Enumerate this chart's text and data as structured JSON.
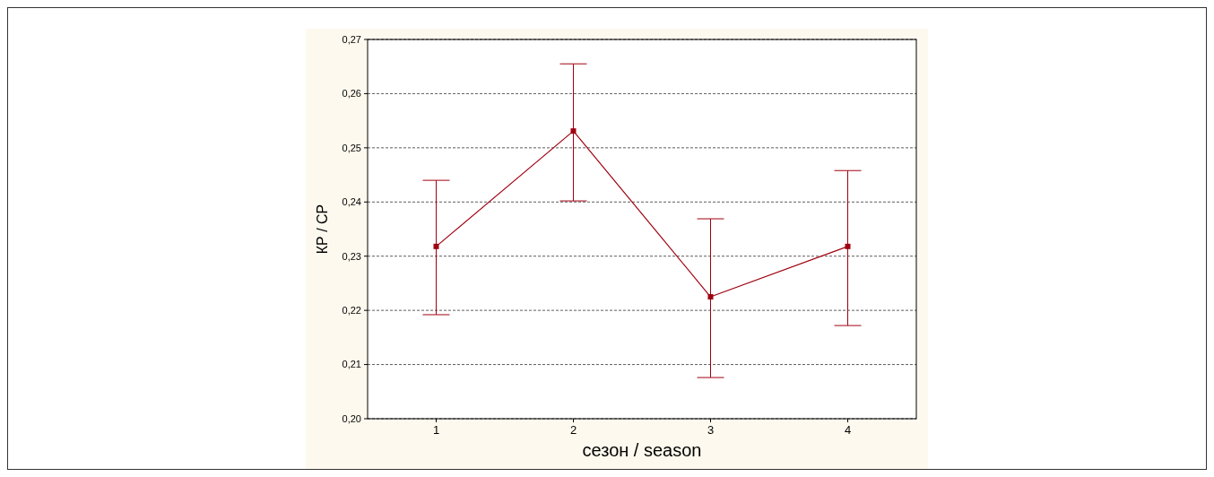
{
  "chart_data": {
    "type": "line",
    "xlabel": "сезон / season",
    "ylabel": "КР / СР",
    "categories": [
      "1",
      "2",
      "3",
      "4"
    ],
    "series": [
      {
        "color": "#a00010",
        "values": [
          0.2318,
          0.2531,
          0.2225,
          0.2318
        ],
        "errors": [
          [
            0.2192,
            0.244
          ],
          [
            0.2402,
            0.2655
          ],
          [
            0.2076,
            0.2369
          ],
          [
            0.2172,
            0.2458
          ]
        ]
      }
    ],
    "ylim": [
      0.2,
      0.27
    ],
    "yticks": [
      {
        "value": 0.2,
        "label": "0,20"
      },
      {
        "value": 0.21,
        "label": "0,21"
      },
      {
        "value": 0.22,
        "label": "0,22"
      },
      {
        "value": 0.23,
        "label": "0,23"
      },
      {
        "value": 0.24,
        "label": "0,24"
      },
      {
        "value": 0.25,
        "label": "0,25"
      },
      {
        "value": 0.26,
        "label": "0,26"
      },
      {
        "value": 0.27,
        "label": "0,27"
      }
    ],
    "grid": "y",
    "marker": "square",
    "line_style": "solid"
  }
}
